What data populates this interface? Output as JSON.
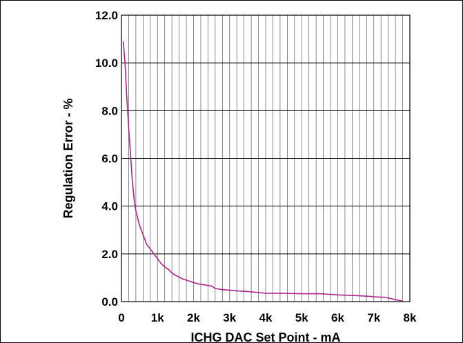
{
  "chart_data": {
    "type": "line",
    "title": "",
    "xlabel": "ICHG DAC Set Point - mA",
    "ylabel": "Regulation Error - %",
    "xlim": [
      0,
      8000
    ],
    "ylim": [
      0,
      12
    ],
    "x_ticks": [
      {
        "value": 0,
        "label": "0"
      },
      {
        "value": 1000,
        "label": "1k"
      },
      {
        "value": 2000,
        "label": "2k"
      },
      {
        "value": 3000,
        "label": "3k"
      },
      {
        "value": 4000,
        "label": "4k"
      },
      {
        "value": 5000,
        "label": "5k"
      },
      {
        "value": 6000,
        "label": "6k"
      },
      {
        "value": 7000,
        "label": "7k"
      },
      {
        "value": 8000,
        "label": "8k"
      }
    ],
    "y_ticks": [
      {
        "value": 0,
        "label": "0.0"
      },
      {
        "value": 2,
        "label": "2.0"
      },
      {
        "value": 4,
        "label": "4.0"
      },
      {
        "value": 6,
        "label": "6.0"
      },
      {
        "value": 8,
        "label": "8.0"
      },
      {
        "value": 10,
        "label": "10.0"
      },
      {
        "value": 12,
        "label": "12.0"
      }
    ],
    "x_minor_step": 200,
    "grid": true,
    "line_color": "#b0208a",
    "series": [
      {
        "x": [
          50,
          100,
          150,
          200,
          250,
          300,
          350,
          400,
          500,
          600,
          700,
          800,
          900,
          1000,
          1100,
          1200,
          1300,
          1400,
          1500,
          1700,
          1900,
          2100,
          2300,
          2500,
          2600,
          2800,
          3000,
          3200,
          3500,
          3800,
          4000,
          4500,
          5000,
          5500,
          5800,
          6000,
          6500,
          6900,
          7000,
          7300,
          7500,
          7600,
          7700,
          7800
        ],
        "y": [
          10.9,
          10.0,
          8.5,
          7.3,
          6.2,
          5.1,
          4.3,
          3.8,
          3.2,
          2.8,
          2.4,
          2.2,
          2.0,
          1.8,
          1.6,
          1.45,
          1.35,
          1.2,
          1.1,
          0.95,
          0.85,
          0.75,
          0.7,
          0.65,
          0.55,
          0.5,
          0.48,
          0.45,
          0.42,
          0.38,
          0.35,
          0.35,
          0.33,
          0.33,
          0.3,
          0.28,
          0.25,
          0.22,
          0.2,
          0.18,
          0.12,
          0.08,
          0.05,
          0.02
        ]
      }
    ]
  }
}
